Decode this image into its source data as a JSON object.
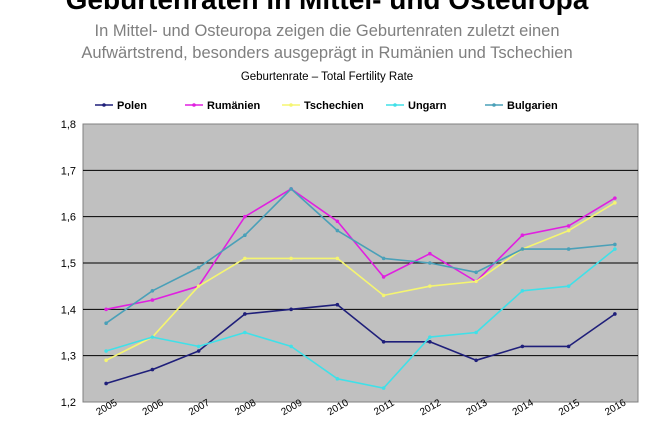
{
  "header": {
    "title": "Geburtenraten in Mittel- und Osteuropa",
    "subtitle_line1": "In Mittel- und Osteuropa zeigen die Geburtenraten zuletzt einen",
    "subtitle_line2": "Aufwärtstrend, besonders ausgeprägt in Rumänien und Tschechien"
  },
  "chart_data": {
    "type": "line",
    "title": "Geburtenrate – Total Fertility Rate",
    "xlabel": "",
    "ylabel": "",
    "x": [
      "2005",
      "2006",
      "2007",
      "2008",
      "2009",
      "2010",
      "2011",
      "2012",
      "2013",
      "2014",
      "2015",
      "2016"
    ],
    "ylim": [
      1.2,
      1.8
    ],
    "yticks": [
      "1,2",
      "1,3",
      "1,4",
      "1,5",
      "1,6",
      "1,7",
      "1,8"
    ],
    "grid": true,
    "legend_position": "top",
    "plot_background": "#c0c0c0",
    "series": [
      {
        "name": "Polen",
        "color": "#1f1f7a",
        "values": [
          1.24,
          1.27,
          1.31,
          1.39,
          1.4,
          1.41,
          1.33,
          1.33,
          1.29,
          1.32,
          1.32,
          1.39
        ]
      },
      {
        "name": "Rumänien",
        "color": "#e020e0",
        "values": [
          1.4,
          1.42,
          1.45,
          1.6,
          1.66,
          1.59,
          1.47,
          1.52,
          1.46,
          1.56,
          1.58,
          1.64
        ]
      },
      {
        "name": "Tschechien",
        "color": "#f5f570",
        "values": [
          1.29,
          1.34,
          1.45,
          1.51,
          1.51,
          1.51,
          1.43,
          1.45,
          1.46,
          1.53,
          1.57,
          1.63
        ]
      },
      {
        "name": "Ungarn",
        "color": "#40e0e8",
        "values": [
          1.31,
          1.34,
          1.32,
          1.35,
          1.32,
          1.25,
          1.23,
          1.34,
          1.35,
          1.44,
          1.45,
          1.53
        ]
      },
      {
        "name": "Bulgarien",
        "color": "#4aa0b8",
        "values": [
          1.37,
          1.44,
          1.49,
          1.56,
          1.66,
          1.57,
          1.51,
          1.5,
          1.48,
          1.53,
          1.53,
          1.54
        ]
      }
    ]
  }
}
